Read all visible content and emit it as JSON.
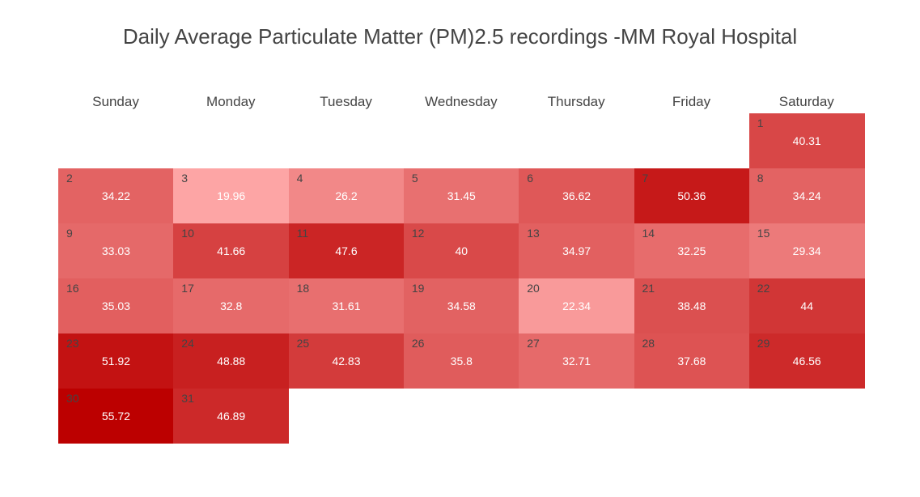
{
  "chart_data": {
    "type": "heatmap",
    "title": "Daily Average Particulate Matter (PM)2.5 recordings -MM Royal Hospital",
    "columns": [
      "Sunday",
      "Monday",
      "Tuesday",
      "Wednesday",
      "Thursday",
      "Friday",
      "Saturday"
    ],
    "first_weekday_index": 6,
    "days": [
      1,
      2,
      3,
      4,
      5,
      6,
      7,
      8,
      9,
      10,
      11,
      12,
      13,
      14,
      15,
      16,
      17,
      18,
      19,
      20,
      21,
      22,
      23,
      24,
      25,
      26,
      27,
      28,
      29,
      30,
      31
    ],
    "values": [
      40.31,
      34.22,
      19.96,
      26.2,
      31.45,
      36.62,
      50.36,
      34.24,
      33.03,
      41.66,
      47.6,
      40,
      34.97,
      32.25,
      29.34,
      35.03,
      32.8,
      31.61,
      34.58,
      22.34,
      38.48,
      44,
      51.92,
      48.88,
      42.83,
      35.8,
      32.71,
      37.68,
      46.56,
      55.72,
      46.89
    ],
    "value_labels": [
      "40.31",
      "34.22",
      "19.96",
      "26.2",
      "31.45",
      "36.62",
      "50.36",
      "34.24",
      "33.03",
      "41.66",
      "47.6",
      "40",
      "34.97",
      "32.25",
      "29.34",
      "35.03",
      "32.8",
      "31.61",
      "34.58",
      "22.34",
      "38.48",
      "44",
      "51.92",
      "48.88",
      "42.83",
      "35.8",
      "32.71",
      "37.68",
      "46.56",
      "55.72",
      "46.89"
    ],
    "color_scale": {
      "low_color": "#fda5a5",
      "high_color": "#bc0000",
      "domain": [
        19.96,
        55.72
      ]
    }
  }
}
